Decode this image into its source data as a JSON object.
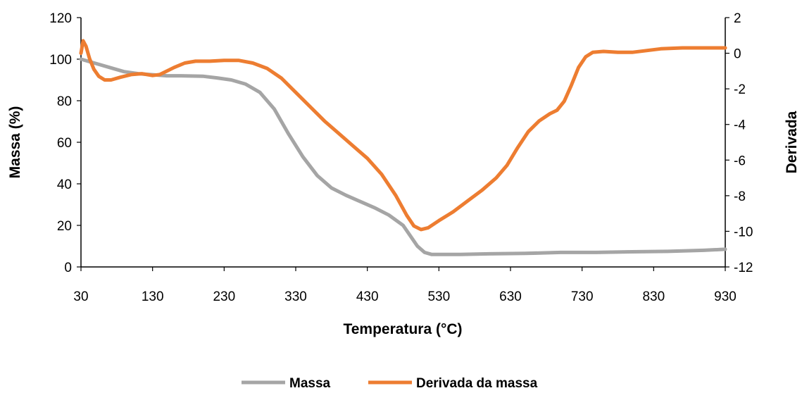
{
  "chart_data": {
    "type": "line",
    "title": "",
    "xlabel": "Temperatura (°C)",
    "ylabel_left": "Massa (%)",
    "ylabel_right": "Derivada",
    "xlim": [
      30,
      930
    ],
    "ylim_left": [
      0,
      120
    ],
    "ylim_right": [
      -12,
      2
    ],
    "x_ticks": [
      "30",
      "130",
      "230",
      "330",
      "430",
      "530",
      "630",
      "730",
      "830",
      "930"
    ],
    "y_left_ticks": [
      "0",
      "20",
      "40",
      "60",
      "80",
      "100",
      "120"
    ],
    "y_right_ticks": [
      "-12",
      "-10",
      "-8",
      "-6",
      "-4",
      "-2",
      "0",
      "2"
    ],
    "grid": false,
    "legend": "bottom",
    "series": [
      {
        "name": "Massa",
        "axis": "left",
        "color": "#A5A5A5",
        "points": [
          [
            30,
            100
          ],
          [
            50,
            98
          ],
          [
            70,
            96
          ],
          [
            90,
            94
          ],
          [
            110,
            93
          ],
          [
            130,
            92.5
          ],
          [
            150,
            92
          ],
          [
            170,
            92
          ],
          [
            200,
            91.8
          ],
          [
            220,
            91
          ],
          [
            240,
            90
          ],
          [
            260,
            88
          ],
          [
            280,
            84
          ],
          [
            300,
            76
          ],
          [
            320,
            64
          ],
          [
            340,
            53
          ],
          [
            360,
            44
          ],
          [
            380,
            38
          ],
          [
            400,
            34.5
          ],
          [
            420,
            31.5
          ],
          [
            440,
            28.5
          ],
          [
            460,
            25
          ],
          [
            480,
            20
          ],
          [
            490,
            15
          ],
          [
            500,
            10
          ],
          [
            510,
            7
          ],
          [
            520,
            6
          ],
          [
            530,
            6
          ],
          [
            560,
            6
          ],
          [
            600,
            6.3
          ],
          [
            650,
            6.5
          ],
          [
            700,
            7
          ],
          [
            750,
            7
          ],
          [
            800,
            7.3
          ],
          [
            850,
            7.5
          ],
          [
            900,
            8
          ],
          [
            930,
            8.5
          ]
        ]
      },
      {
        "name": "Derivada da massa",
        "axis": "right",
        "color": "#ED7D31",
        "points": [
          [
            30,
            0
          ],
          [
            33,
            0.7
          ],
          [
            37,
            0.4
          ],
          [
            42,
            -0.3
          ],
          [
            48,
            -0.9
          ],
          [
            55,
            -1.3
          ],
          [
            63,
            -1.5
          ],
          [
            72,
            -1.5
          ],
          [
            85,
            -1.35
          ],
          [
            100,
            -1.2
          ],
          [
            115,
            -1.15
          ],
          [
            130,
            -1.25
          ],
          [
            140,
            -1.2
          ],
          [
            150,
            -1.0
          ],
          [
            160,
            -0.8
          ],
          [
            175,
            -0.55
          ],
          [
            190,
            -0.45
          ],
          [
            210,
            -0.45
          ],
          [
            230,
            -0.4
          ],
          [
            250,
            -0.4
          ],
          [
            270,
            -0.55
          ],
          [
            290,
            -0.85
          ],
          [
            310,
            -1.4
          ],
          [
            330,
            -2.2
          ],
          [
            350,
            -3.0
          ],
          [
            370,
            -3.8
          ],
          [
            390,
            -4.5
          ],
          [
            410,
            -5.2
          ],
          [
            430,
            -5.9
          ],
          [
            450,
            -6.8
          ],
          [
            470,
            -8.0
          ],
          [
            485,
            -9.1
          ],
          [
            495,
            -9.7
          ],
          [
            505,
            -9.9
          ],
          [
            515,
            -9.8
          ],
          [
            530,
            -9.4
          ],
          [
            550,
            -8.9
          ],
          [
            570,
            -8.3
          ],
          [
            590,
            -7.7
          ],
          [
            610,
            -7.0
          ],
          [
            625,
            -6.3
          ],
          [
            640,
            -5.3
          ],
          [
            655,
            -4.4
          ],
          [
            670,
            -3.8
          ],
          [
            685,
            -3.4
          ],
          [
            695,
            -3.2
          ],
          [
            705,
            -2.7
          ],
          [
            715,
            -1.8
          ],
          [
            725,
            -0.8
          ],
          [
            735,
            -0.2
          ],
          [
            745,
            0.05
          ],
          [
            760,
            0.1
          ],
          [
            780,
            0.05
          ],
          [
            800,
            0.05
          ],
          [
            820,
            0.15
          ],
          [
            840,
            0.25
          ],
          [
            870,
            0.3
          ],
          [
            900,
            0.3
          ],
          [
            930,
            0.3
          ]
        ]
      }
    ]
  }
}
